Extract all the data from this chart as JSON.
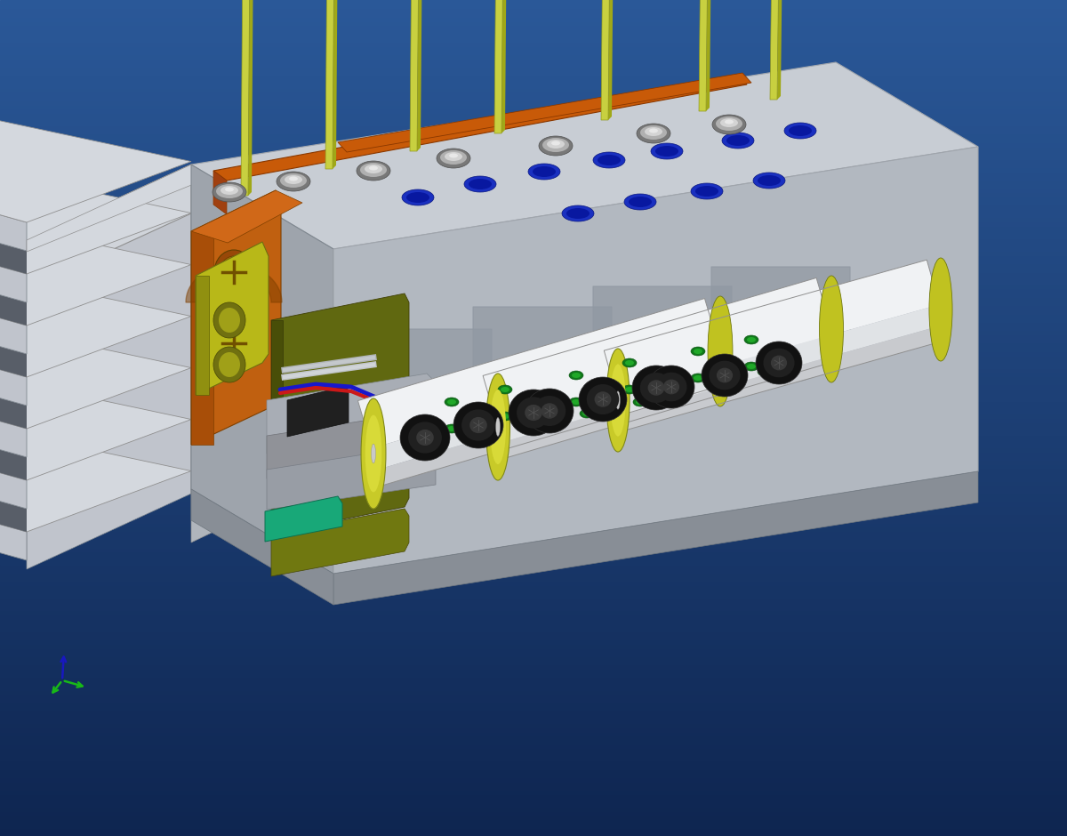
{
  "bg_grad_top": "#0e2550",
  "bg_grad_bot": "#2a5898",
  "heatsink_top": "#d2d6dc",
  "heatsink_front": "#a8adb5",
  "heatsink_shadow": "#606870",
  "fin_face": "#b8bdc5",
  "fin_top": "#d0d4da",
  "fin_gap": "#606870",
  "main_top": "#c8cdd4",
  "main_front": "#9ea4ac",
  "main_right": "#b2b8c0",
  "orange": "#c85a08",
  "orange_dark": "#8a3800",
  "orange_side": "#a04010",
  "rod_color": "#c8d040",
  "rod_dark": "#909820",
  "rod_cap": "#d8e050",
  "blue_dot": "#1030c0",
  "blue_dot_inner": "#0820a0",
  "screw_outer": "#909090",
  "screw_mid": "#b8b8b8",
  "screw_top": "#d8d8d8",
  "cyl_body": "#e0e3e6",
  "cyl_body_lit": "#f0f2f4",
  "cyl_body_shad": "#c0c3c6",
  "cyl_cap": "#c0c828",
  "cyl_cap_inner": "#909820",
  "cyl_pin": "#c8c8c8",
  "black_ring": "#151515",
  "black_ring_mid": "#252525",
  "black_ring_hex": "#454545",
  "green_dot": "#10781a",
  "green_dot_hi": "#20a828",
  "mount_face": "#b0b5bc",
  "mount_bg": "#9095a0",
  "orange_brk_front": "#c85a08",
  "orange_brk_side": "#8a3000",
  "orange_brk_top": "#d06010",
  "yellow_brk": "#c8c820",
  "yellow_brk_dark": "#909010",
  "olive_brk": "#606810",
  "olive_brk_dark": "#404008",
  "gray_slab": "#a8adb5",
  "teal": "#10906070",
  "red_wire": "#cc1818",
  "blue_wire": "#1818cc",
  "silver_rod": "#b0b4b8",
  "coord_green": "#18b818",
  "coord_blue": "#1818c0"
}
